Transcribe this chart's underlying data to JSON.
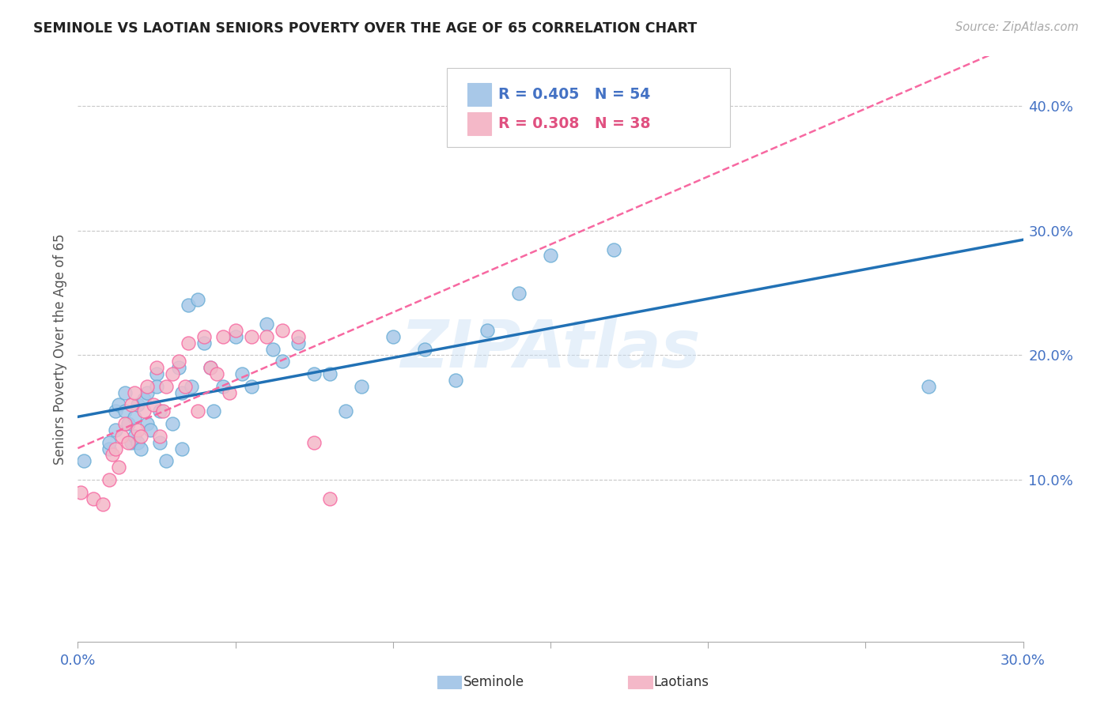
{
  "title": "SEMINOLE VS LAOTIAN SENIORS POVERTY OVER THE AGE OF 65 CORRELATION CHART",
  "source": "Source: ZipAtlas.com",
  "ylabel": "Seniors Poverty Over the Age of 65",
  "watermark": "ZIPAtlas",
  "seminole_R": 0.405,
  "seminole_N": 54,
  "laotian_R": 0.308,
  "laotian_N": 38,
  "xlim": [
    0.0,
    0.3
  ],
  "ylim": [
    -0.03,
    0.44
  ],
  "xticks": [
    0.0,
    0.05,
    0.1,
    0.15,
    0.2,
    0.25,
    0.3
  ],
  "xtick_labels_show": [
    true,
    false,
    false,
    false,
    false,
    false,
    true
  ],
  "xtick_label_values": [
    "0.0%",
    "",
    "",
    "",
    "",
    "",
    "30.0%"
  ],
  "yticks_right": [
    0.1,
    0.2,
    0.3,
    0.4
  ],
  "ytick_labels": [
    "10.0%",
    "20.0%",
    "30.0%",
    "40.0%"
  ],
  "seminole_color": "#a8c8e8",
  "seminole_edge_color": "#6baed6",
  "laotian_color": "#f4b8c8",
  "laotian_edge_color": "#f768a1",
  "trend_seminole_color": "#2171b5",
  "trend_laotian_color": "#f768a1",
  "background_color": "#ffffff",
  "grid_color": "#c8c8c8",
  "axis_color": "#4472c4",
  "title_color": "#222222",
  "source_color": "#aaaaaa",
  "legend_box_edge": "#c8c8c8",
  "legend_seminole_text_color": "#4472c4",
  "legend_laotian_text_color": "#e05080",
  "legend_N_color": "#4472c4",
  "watermark_color": "#c8dff5",
  "seminole_x": [
    0.002,
    0.01,
    0.01,
    0.012,
    0.012,
    0.013,
    0.015,
    0.015,
    0.016,
    0.017,
    0.018,
    0.018,
    0.019,
    0.019,
    0.02,
    0.021,
    0.022,
    0.022,
    0.023,
    0.025,
    0.025,
    0.026,
    0.026,
    0.028,
    0.03,
    0.032,
    0.033,
    0.033,
    0.035,
    0.036,
    0.038,
    0.04,
    0.042,
    0.043,
    0.046,
    0.05,
    0.052,
    0.055,
    0.06,
    0.062,
    0.065,
    0.07,
    0.075,
    0.08,
    0.085,
    0.09,
    0.1,
    0.11,
    0.12,
    0.13,
    0.14,
    0.15,
    0.17,
    0.27
  ],
  "seminole_y": [
    0.115,
    0.125,
    0.13,
    0.14,
    0.155,
    0.16,
    0.17,
    0.155,
    0.145,
    0.13,
    0.135,
    0.15,
    0.16,
    0.13,
    0.125,
    0.165,
    0.17,
    0.145,
    0.14,
    0.185,
    0.175,
    0.155,
    0.13,
    0.115,
    0.145,
    0.19,
    0.17,
    0.125,
    0.24,
    0.175,
    0.245,
    0.21,
    0.19,
    0.155,
    0.175,
    0.215,
    0.185,
    0.175,
    0.225,
    0.205,
    0.195,
    0.21,
    0.185,
    0.185,
    0.155,
    0.175,
    0.215,
    0.205,
    0.18,
    0.22,
    0.25,
    0.28,
    0.285,
    0.175
  ],
  "laotian_x": [
    0.001,
    0.005,
    0.008,
    0.01,
    0.011,
    0.012,
    0.013,
    0.014,
    0.015,
    0.016,
    0.017,
    0.018,
    0.019,
    0.02,
    0.021,
    0.022,
    0.024,
    0.025,
    0.026,
    0.027,
    0.028,
    0.03,
    0.032,
    0.034,
    0.035,
    0.038,
    0.04,
    0.042,
    0.044,
    0.046,
    0.048,
    0.05,
    0.055,
    0.06,
    0.065,
    0.07,
    0.075,
    0.08
  ],
  "laotian_y": [
    0.09,
    0.085,
    0.08,
    0.1,
    0.12,
    0.125,
    0.11,
    0.135,
    0.145,
    0.13,
    0.16,
    0.17,
    0.14,
    0.135,
    0.155,
    0.175,
    0.16,
    0.19,
    0.135,
    0.155,
    0.175,
    0.185,
    0.195,
    0.175,
    0.21,
    0.155,
    0.215,
    0.19,
    0.185,
    0.215,
    0.17,
    0.22,
    0.215,
    0.215,
    0.22,
    0.215,
    0.13,
    0.085
  ]
}
